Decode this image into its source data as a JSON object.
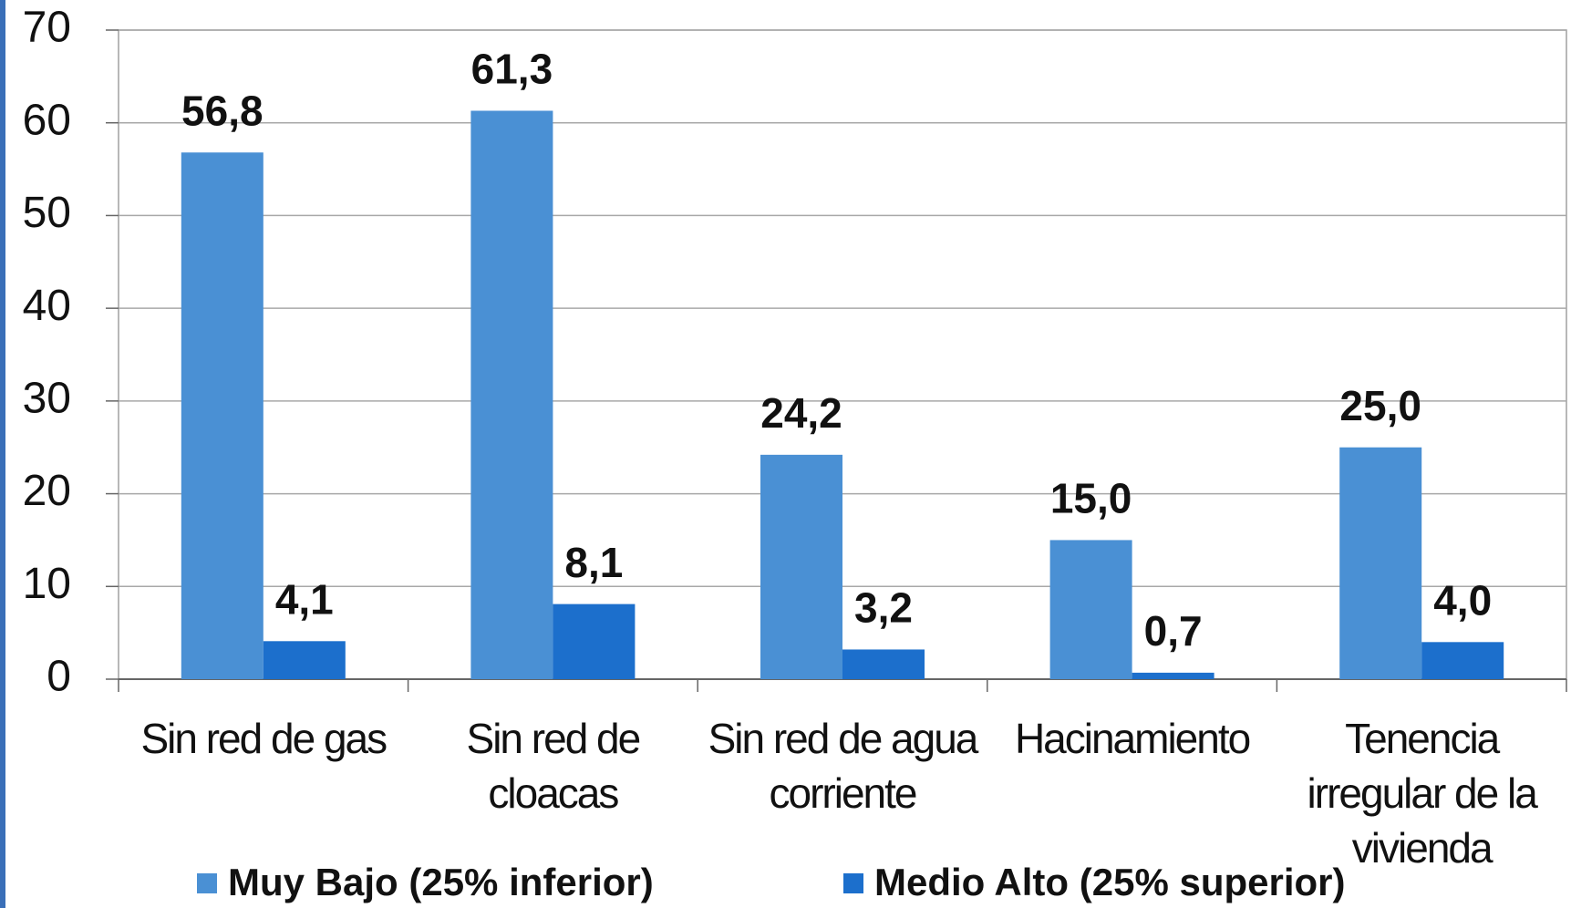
{
  "chart_data": {
    "type": "bar",
    "categories": [
      "Sin red de gas",
      "Sin red de cloacas",
      "Sin red de agua corriente",
      "Hacinamiento",
      "Tenencia irregular de la vivienda"
    ],
    "series": [
      {
        "name": "Muy Bajo (25% inferior)",
        "color": "#4a90d4",
        "values": [
          56.8,
          61.3,
          24.2,
          15.0,
          25.0
        ],
        "value_labels": [
          "56,8",
          "61,3",
          "24,2",
          "15,0",
          "25,0"
        ]
      },
      {
        "name": "Medio Alto (25% superior)",
        "color": "#1c6fcc",
        "values": [
          4.1,
          8.1,
          3.2,
          0.7,
          4.0
        ],
        "value_labels": [
          "4,1",
          "8,1",
          "3,2",
          "0,7",
          "4,0"
        ]
      }
    ],
    "ylim": [
      0,
      70
    ],
    "yticks": [
      0,
      10,
      20,
      30,
      40,
      50,
      60,
      70
    ],
    "grid": true,
    "legend": "bottom"
  }
}
